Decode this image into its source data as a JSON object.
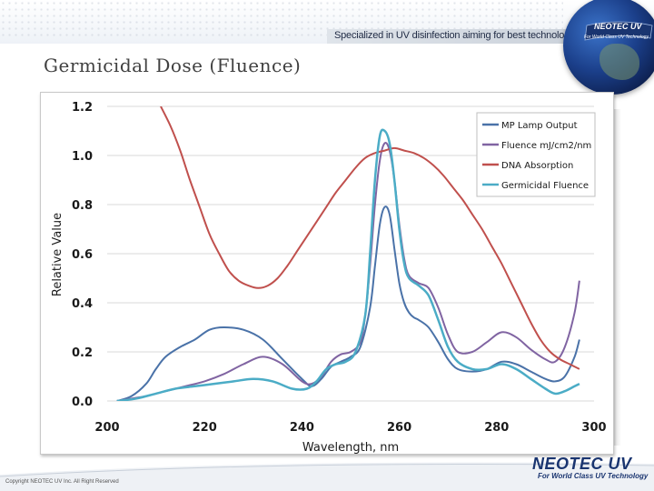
{
  "header": {
    "tagline": "Specialized in UV disinfection aiming for best technology",
    "badge_title": "NEOTEC UV",
    "badge_subtitle": "For World Class UV Technology"
  },
  "slide": {
    "title": "Germicidal Dose (Fluence)"
  },
  "footer": {
    "copyright": "Copyright NEOTEC UV Inc. All Right Reserved",
    "logo": "NEOTEC UV",
    "logo_subtitle": "For World Class UV Technology"
  },
  "colors": {
    "mp_lamp": "#4a72a8",
    "fluence": "#8064a2",
    "dna": "#c0504d",
    "germicidal": "#4bacc6",
    "grid": "#d9d9d9",
    "brand": "#1a3570"
  },
  "chart_data": {
    "type": "line",
    "title": "",
    "xlabel": "Wavelength, nm",
    "ylabel": "Relative Value",
    "xlim": [
      200,
      300
    ],
    "ylim": [
      0,
      1.2
    ],
    "xticks": [
      "200",
      "220",
      "240",
      "260",
      "280",
      "300"
    ],
    "yticks": [
      "0.0",
      "0.2",
      "0.4",
      "0.6",
      "0.8",
      "1.0",
      "1.2"
    ],
    "legend_position": "top-right",
    "series": [
      {
        "name": "MP Lamp Output",
        "x": [
          202,
          205,
          208,
          210,
          212,
          215,
          218,
          221,
          224,
          228,
          232,
          236,
          240,
          242,
          244,
          246,
          248,
          250,
          252,
          254,
          255,
          256,
          257,
          258,
          259,
          260,
          261,
          262,
          263,
          264,
          266,
          268,
          270,
          272,
          275,
          278,
          281,
          284,
          287,
          290,
          292,
          294,
          296,
          297
        ],
        "y": [
          0.0,
          0.02,
          0.07,
          0.13,
          0.18,
          0.22,
          0.25,
          0.29,
          0.3,
          0.29,
          0.25,
          0.17,
          0.09,
          0.06,
          0.09,
          0.14,
          0.16,
          0.18,
          0.22,
          0.38,
          0.55,
          0.72,
          0.79,
          0.76,
          0.62,
          0.48,
          0.4,
          0.36,
          0.34,
          0.33,
          0.3,
          0.24,
          0.17,
          0.13,
          0.12,
          0.13,
          0.16,
          0.15,
          0.12,
          0.09,
          0.08,
          0.1,
          0.18,
          0.25
        ]
      },
      {
        "name": "Fluence mJ/cm2/nm",
        "x": [
          202,
          205,
          208,
          212,
          216,
          220,
          224,
          228,
          232,
          236,
          240,
          242,
          244,
          246,
          248,
          250,
          252,
          253,
          254,
          255,
          256,
          257,
          258,
          259,
          260,
          261,
          262,
          264,
          266,
          268,
          270,
          272,
          275,
          278,
          281,
          284,
          287,
          290,
          292,
          294,
          296,
          297
        ],
        "y": [
          0.0,
          0.01,
          0.02,
          0.04,
          0.06,
          0.08,
          0.11,
          0.15,
          0.18,
          0.15,
          0.08,
          0.07,
          0.1,
          0.16,
          0.19,
          0.2,
          0.24,
          0.35,
          0.55,
          0.8,
          0.98,
          1.05,
          1.02,
          0.9,
          0.72,
          0.58,
          0.51,
          0.48,
          0.46,
          0.38,
          0.27,
          0.2,
          0.2,
          0.24,
          0.28,
          0.26,
          0.21,
          0.17,
          0.16,
          0.22,
          0.36,
          0.49
        ]
      },
      {
        "name": "DNA Absorption",
        "x": [
          211,
          213,
          215,
          217,
          219,
          221,
          223,
          225,
          227,
          229,
          231,
          233,
          235,
          237,
          239,
          241,
          243,
          245,
          247,
          249,
          251,
          253,
          255,
          257,
          259,
          261,
          263,
          265,
          267,
          269,
          271,
          273,
          275,
          277,
          279,
          281,
          283,
          285,
          287,
          289,
          291,
          293,
          295,
          297
        ],
        "y": [
          1.2,
          1.12,
          1.02,
          0.9,
          0.79,
          0.68,
          0.6,
          0.53,
          0.49,
          0.47,
          0.46,
          0.47,
          0.5,
          0.55,
          0.61,
          0.67,
          0.73,
          0.79,
          0.85,
          0.9,
          0.95,
          0.99,
          1.01,
          1.02,
          1.03,
          1.02,
          1.01,
          0.99,
          0.96,
          0.92,
          0.87,
          0.82,
          0.76,
          0.7,
          0.63,
          0.56,
          0.48,
          0.4,
          0.32,
          0.25,
          0.2,
          0.17,
          0.15,
          0.13
        ]
      },
      {
        "name": "Germicidal Fluence",
        "x": [
          202,
          206,
          210,
          214,
          218,
          222,
          226,
          230,
          234,
          238,
          241,
          243,
          245,
          247,
          249,
          251,
          253,
          254,
          255,
          256,
          257,
          258,
          259,
          260,
          261,
          262,
          264,
          266,
          268,
          270,
          272,
          275,
          278,
          281,
          284,
          287,
          290,
          292,
          294,
          296,
          297
        ],
        "y": [
          0.0,
          0.01,
          0.03,
          0.05,
          0.06,
          0.07,
          0.08,
          0.09,
          0.08,
          0.05,
          0.05,
          0.08,
          0.13,
          0.15,
          0.16,
          0.2,
          0.35,
          0.6,
          0.9,
          1.08,
          1.1,
          1.05,
          0.9,
          0.7,
          0.56,
          0.5,
          0.47,
          0.43,
          0.33,
          0.22,
          0.16,
          0.13,
          0.13,
          0.15,
          0.13,
          0.09,
          0.05,
          0.03,
          0.04,
          0.06,
          0.07
        ]
      }
    ]
  }
}
